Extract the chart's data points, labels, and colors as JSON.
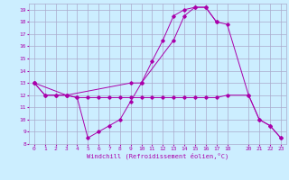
{
  "xlabel": "Windchill (Refroidissement éolien,°C)",
  "bg_color": "#cceeff",
  "grid_color": "#aaaacc",
  "line_color": "#aa00aa",
  "xlim": [
    -0.5,
    23.5
  ],
  "ylim": [
    8,
    19.5
  ],
  "yticks": [
    8,
    9,
    10,
    11,
    12,
    13,
    14,
    15,
    16,
    17,
    18,
    19
  ],
  "xticks": [
    0,
    1,
    2,
    3,
    4,
    5,
    6,
    7,
    8,
    9,
    10,
    11,
    12,
    13,
    14,
    15,
    16,
    17,
    18,
    20,
    21,
    22,
    23
  ],
  "line1_x": [
    0,
    1,
    2,
    3,
    4,
    5,
    6,
    7,
    8,
    9,
    10,
    11,
    12,
    13,
    14,
    15,
    16,
    17
  ],
  "line1_y": [
    13,
    12,
    12,
    12,
    11.8,
    8.5,
    9.0,
    9.5,
    10.0,
    11.5,
    13.0,
    14.8,
    16.5,
    18.5,
    19.0,
    19.2,
    19.2,
    18.0
  ],
  "line2_x": [
    0,
    1,
    2,
    3,
    4,
    5,
    6,
    7,
    8,
    9,
    10,
    11,
    12,
    13,
    14,
    15,
    16,
    17,
    18,
    20,
    21,
    22,
    23
  ],
  "line2_y": [
    13,
    12,
    12,
    12,
    11.8,
    11.8,
    11.8,
    11.8,
    11.8,
    11.8,
    11.8,
    11.8,
    11.8,
    11.8,
    11.8,
    11.8,
    11.8,
    11.8,
    12.0,
    12.0,
    10.0,
    9.5,
    8.5
  ],
  "line3_x": [
    0,
    3,
    9,
    10,
    13,
    14,
    15,
    16,
    17,
    18,
    20,
    21,
    22,
    23
  ],
  "line3_y": [
    13,
    12,
    13.0,
    13.0,
    16.5,
    18.5,
    19.2,
    19.2,
    18.0,
    17.8,
    12.0,
    10.0,
    9.5,
    8.5
  ]
}
